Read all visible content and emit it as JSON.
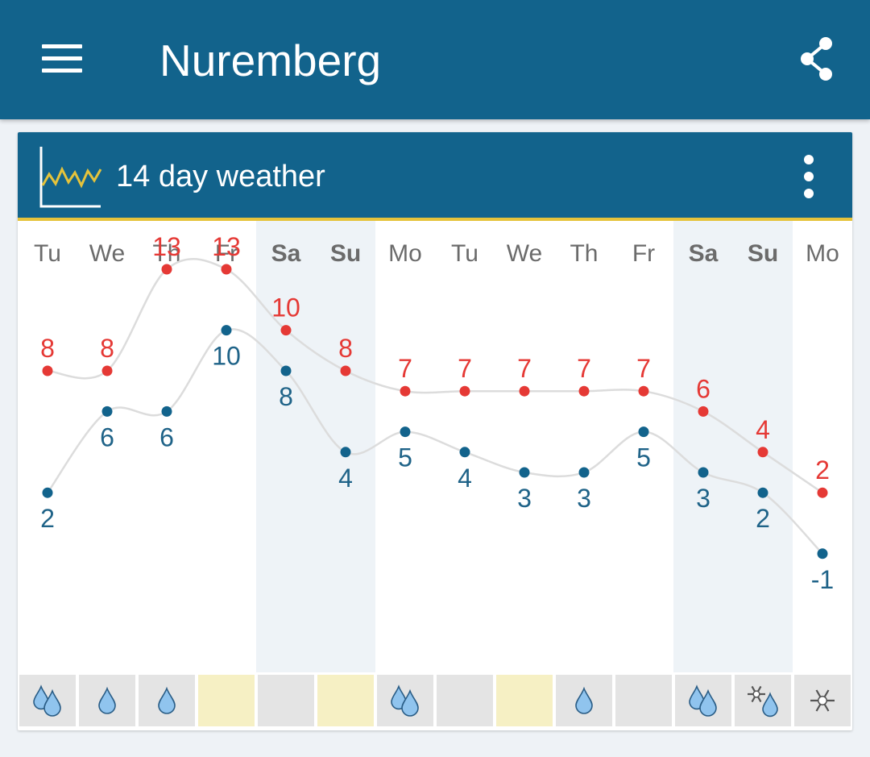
{
  "app_bar": {
    "title": "Nuremberg",
    "menu_icon": "hamburger-menu-icon",
    "share_icon": "share-icon"
  },
  "card": {
    "title": "14 day weather",
    "chart_icon": "line-chart-icon",
    "more_icon": "more-vert-icon"
  },
  "colors": {
    "header": "#12638c",
    "accent": "#e5c33b",
    "high": "#e53935",
    "low": "#12638c",
    "weekend_shade": "#eef3f7",
    "cell_grey": "#e4e4e4",
    "cell_sun": "#f6f0c4"
  },
  "chart_data": {
    "type": "line",
    "categories": [
      "Tu",
      "We",
      "Th",
      "Fr",
      "Sa",
      "Su",
      "Mo",
      "Tu",
      "We",
      "Th",
      "Fr",
      "Sa",
      "Su",
      "Mo"
    ],
    "weekend_days": [
      4,
      5,
      11,
      12
    ],
    "series": [
      {
        "values": [
          8,
          8,
          13,
          13,
          10,
          8,
          7,
          7,
          7,
          7,
          7,
          6,
          4,
          2
        ]
      },
      {
        "values": [
          2,
          6,
          6,
          10,
          8,
          4,
          5,
          4,
          3,
          3,
          5,
          3,
          2,
          -1
        ]
      }
    ],
    "precipitation": [
      "rain-heavy",
      "rain",
      "rain",
      "sun",
      "cloud",
      "sun",
      "rain-heavy",
      "cloud",
      "sun",
      "rain",
      "cloud",
      "rain-heavy",
      "snow-rain",
      "snow"
    ]
  }
}
